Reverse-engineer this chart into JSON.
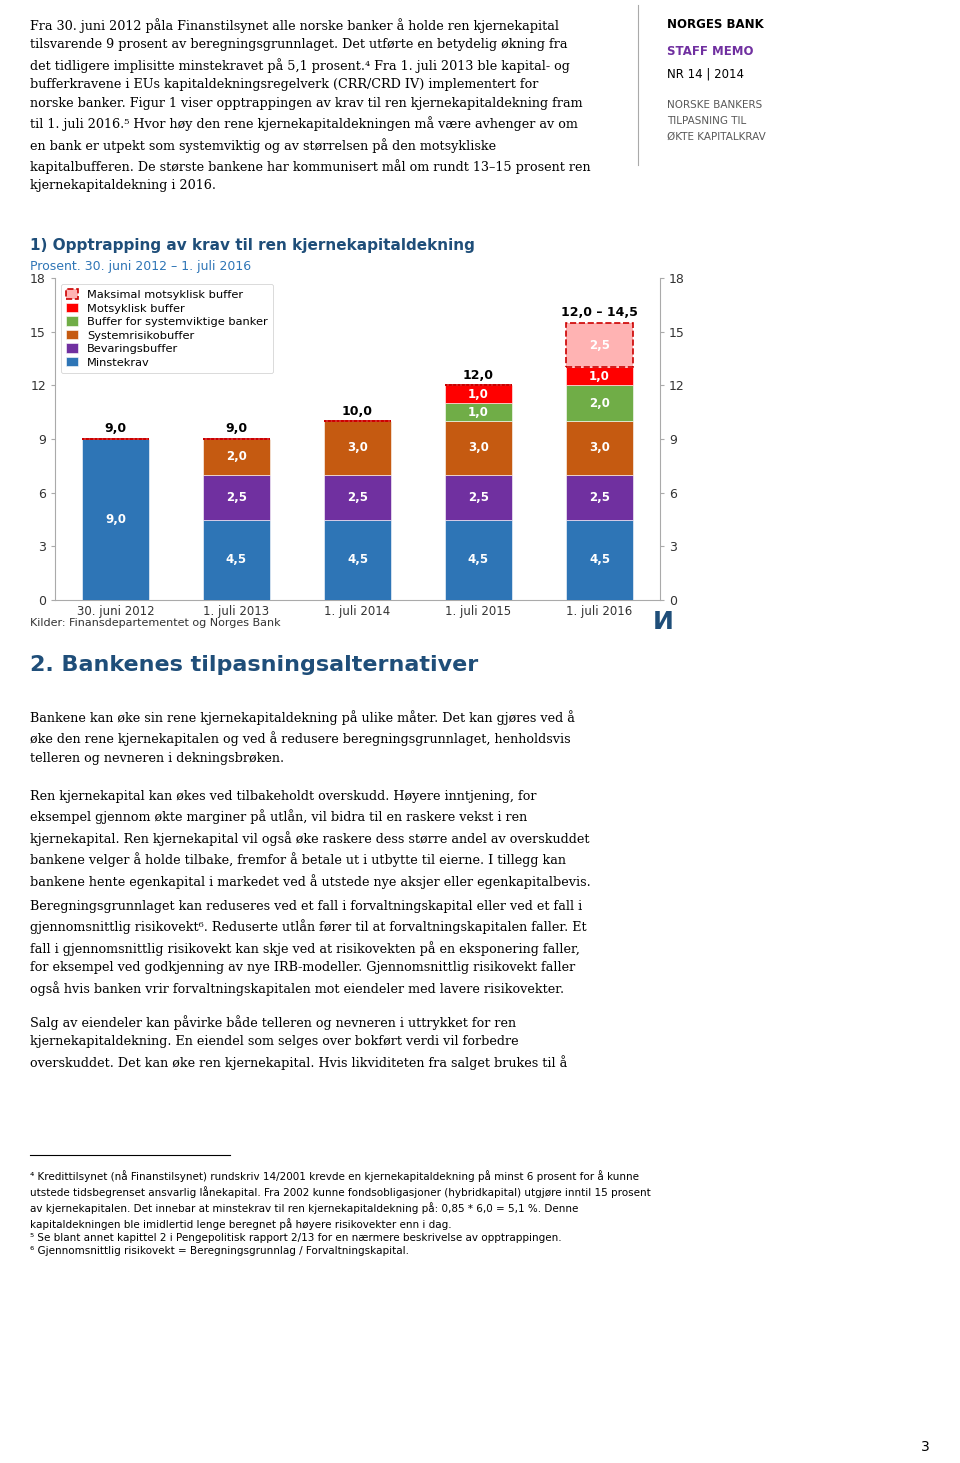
{
  "title": "1) Opptrapping av krav til ren kjernekapitaldekning",
  "subtitle": "Prosent. 30. juni 2012 – 1. juli 2016",
  "source": "Kilder: Finansdepartementet og Norges Bank",
  "categories": [
    "30. juni 2012",
    "1. juli 2013",
    "1. juli 2014",
    "1. juli 2015",
    "1. juli 2016"
  ],
  "series": {
    "Minstekrav": [
      9.0,
      4.5,
      4.5,
      4.5,
      4.5
    ],
    "Bevaringsbuffer": [
      0.0,
      2.5,
      2.5,
      2.5,
      2.5
    ],
    "Systemrisikobuffer": [
      0.0,
      2.0,
      3.0,
      3.0,
      3.0
    ],
    "Buffer for systemviktige banker": [
      0.0,
      0.0,
      0.0,
      1.0,
      2.0
    ],
    "Motsyklisk buffer": [
      0.0,
      0.0,
      0.0,
      1.0,
      1.0
    ],
    "Maksimal motsyklisk buffer": [
      0.0,
      0.0,
      0.0,
      0.0,
      2.5
    ]
  },
  "colors": {
    "Minstekrav": "#2e75b6",
    "Bevaringsbuffer": "#7030a0",
    "Systemrisikobuffer": "#c55a11",
    "Buffer for systemviktige banker": "#70ad47",
    "Motsyklisk buffer": "#ff0000",
    "Maksimal motsyklisk buffer": "#ffb3b3"
  },
  "bar_labels": {
    "Minstekrav": [
      "9,0",
      "4,5",
      "4,5",
      "4,5",
      "4,5"
    ],
    "Bevaringsbuffer": [
      "",
      "2,5",
      "2,5",
      "2,5",
      "2,5"
    ],
    "Systemrisikobuffer": [
      "",
      "2,0",
      "3,0",
      "3,0",
      "3,0"
    ],
    "Buffer for systemviktige banker": [
      "",
      "",
      "",
      "1,0",
      "2,0"
    ],
    "Motsyklisk buffer": [
      "",
      "",
      "",
      "1,0",
      "1,0"
    ],
    "Maksimal motsyklisk buffer": [
      "",
      "",
      "",
      "",
      "2,5"
    ]
  },
  "totals": [
    "9,0",
    "9,0",
    "10,0",
    "12,0",
    "12,0 – 14,5"
  ],
  "ylim": [
    0,
    18
  ],
  "yticks": [
    0,
    3,
    6,
    9,
    12,
    15,
    18
  ],
  "figwidth": 9.6,
  "figheight": 14.63,
  "bg_color": "#ffffff",
  "text_color": "#333333",
  "header_norgesbank": "NORGES BANK",
  "header_staffmemo": "STAFF MEMO",
  "header_nr": "NR 14 | 2014",
  "header_sub1": "NORSKE BANKERS",
  "header_sub2": "TILPASNING TIL",
  "header_sub3": "ØKTE KAPITALKRAV",
  "body_para1": "Fra 30. juni 2012 påla Finanstilsynet alle norske banker å holde ren kjernekapital\ntilsvarende 9 prosent av beregningsgrunnlaget. Det utførte en betydelig økning fra\ndet tidligere implisitte minstekravet på 5,1 prosent.⁴ Fra 1. juli 2013 ble kapital- og\nbufferkravene i EUs kapitaldekningsregelverk (CRR/CRD IV) implementert for\nnorske banker. Figur 1 viser opptrappingen av krav til ren kjernekapitaldekning fram\ntil 1. juli 2016.⁵ Hvor høy den rene kjernekapitaldekningen må være avhenger av om\nen bank er utpekt som systemviktig og av størrelsen på den motsykliske\nkapitalbufferen. De største bankene har kommunisert mål om rundt 13–15 prosent ren\nkjernekapitaldekning i 2016.",
  "section2_title": "2. Bankenes tilpasningsalternativer",
  "body_para2": "Bankene kan øke sin rene kjernekapitaldekning på ulike måter. Det kan gjøres ved å\nøke den rene kjernekapitalen og ved å redusere beregningsgrunnlaget, henholdsvis\ntelleren og nevneren i dekningsbrøken.",
  "body_para3": "Ren kjernekapital kan økes ved tilbakeholdt overskudd. Høyere inntjening, for\neksempel gjennom økte marginer på utlån, vil bidra til en raskere vekst i ren\nkjernekapital. Ren kjernekapital vil også øke raskere dess større andel av overskuddet\nbankene velger å holde tilbake, fremfor å betale ut i utbytte til eierne. I tillegg kan\nbankene hente egenkapital i markedet ved å utstede nye aksjer eller egenkapitalbevis.",
  "body_para4": "Beregningsgrunnlaget kan reduseres ved et fall i forvaltningskapital eller ved et fall i\ngjennomsnittlig risikovekt⁶. Reduserte utlån fører til at forvaltningskapitalen faller. Et\nfall i gjennomsnittlig risikovekt kan skje ved at risikovekten på en eksponering faller,\nfor eksempel ved godkjenning av nye IRB-modeller. Gjennomsnittlig risikovekt faller\nogså hvis banken vrir forvaltningskapitalen mot eiendeler med lavere risikovekter.",
  "body_para5": "Salg av eiendeler kan påvirke både telleren og nevneren i uttrykket for ren\nkjernekapitaldekning. En eiendel som selges over bokført verdi vil forbedre\noverskuddet. Det kan øke ren kjernekapital. Hvis likviditeten fra salget brukes til å",
  "footnote_text": "⁴ Kredittilsynet (nå Finanstilsynet) rundskriv 14/2001 krevde en kjernekapitaldekning på minst 6 prosent for å kunne\nutstede tidsbegrenset ansvarlig lånekapital. Fra 2002 kunne fondsobligasjoner (hybridkapital) utgjøre inntil 15 prosent\nav kjernekapitalen. Det innebar at minstekrav til ren kjernekapitaldekning på: 0,85 * 6,0 = 5,1 %. Denne\nkapitaldekningen ble imidlertid lenge beregnet på høyere risikovekter enn i dag.\n⁵ Se blant annet kapittel 2 i Pengepolitisk rapport 2/13 for en nærmere beskrivelse av opptrappingen.\n⁶ Gjennomsnittlig risikovekt = Beregningsgrunnlag / Forvaltningskapital.",
  "page_number": "3"
}
